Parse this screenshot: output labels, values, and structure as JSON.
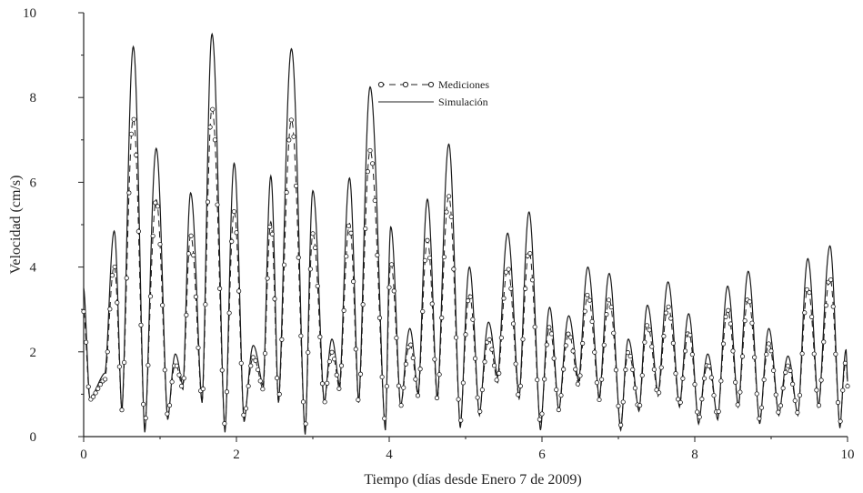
{
  "chart_data": {
    "type": "line",
    "title": "",
    "xlabel": "Tiempo (días desde Enero 7 de 2009)",
    "ylabel": "Velocidad (cm/s)",
    "xlim": [
      0,
      10
    ],
    "ylim": [
      0,
      10
    ],
    "x_ticks": [
      "0",
      "2",
      "4",
      "6",
      "8",
      "10"
    ],
    "y_ticks": [
      "0",
      "2",
      "4",
      "6",
      "8",
      "10"
    ],
    "grid": false,
    "legend_position": "top-center",
    "colors": {
      "line": "#1a1a1a",
      "marker_fill": "#ffffff"
    },
    "series": [
      {
        "name": "Simulación",
        "style": "solid",
        "peaks": [
          [
            0.4,
            4.85
          ],
          [
            0.65,
            9.2
          ],
          [
            0.95,
            6.8
          ],
          [
            1.2,
            1.95
          ],
          [
            1.4,
            5.75
          ],
          [
            1.68,
            9.5
          ],
          [
            1.97,
            6.45
          ],
          [
            2.22,
            2.15
          ],
          [
            2.45,
            6.15
          ],
          [
            2.72,
            9.15
          ],
          [
            3.0,
            5.8
          ],
          [
            3.25,
            2.3
          ],
          [
            3.48,
            6.1
          ],
          [
            3.75,
            8.25
          ],
          [
            4.02,
            4.95
          ],
          [
            4.27,
            2.55
          ],
          [
            4.5,
            5.6
          ],
          [
            4.78,
            6.9
          ],
          [
            5.05,
            4.0
          ],
          [
            5.3,
            2.7
          ],
          [
            5.55,
            4.8
          ],
          [
            5.83,
            5.3
          ],
          [
            6.1,
            3.05
          ],
          [
            6.35,
            2.85
          ],
          [
            6.6,
            4.0
          ],
          [
            6.88,
            3.85
          ],
          [
            7.13,
            2.3
          ],
          [
            7.38,
            3.1
          ],
          [
            7.65,
            3.65
          ],
          [
            7.92,
            2.9
          ],
          [
            8.17,
            1.95
          ],
          [
            8.43,
            3.55
          ],
          [
            8.7,
            3.9
          ],
          [
            8.97,
            2.55
          ],
          [
            9.22,
            1.9
          ],
          [
            9.48,
            4.2
          ],
          [
            9.77,
            4.5
          ],
          [
            9.98,
            2.05
          ]
        ],
        "troughs": [
          [
            0.0,
            3.5
          ],
          [
            0.08,
            0.9
          ],
          [
            0.28,
            1.5
          ],
          [
            0.5,
            0.6
          ],
          [
            0.8,
            0.1
          ],
          [
            1.1,
            0.4
          ],
          [
            1.3,
            1.2
          ],
          [
            1.55,
            0.8
          ],
          [
            1.85,
            0.1
          ],
          [
            2.1,
            0.35
          ],
          [
            2.35,
            1.2
          ],
          [
            2.55,
            0.8
          ],
          [
            2.9,
            0.05
          ],
          [
            3.15,
            0.8
          ],
          [
            3.35,
            1.2
          ],
          [
            3.6,
            0.8
          ],
          [
            3.95,
            0.15
          ],
          [
            4.15,
            0.7
          ],
          [
            4.38,
            1.0
          ],
          [
            4.63,
            0.9
          ],
          [
            4.93,
            0.2
          ],
          [
            5.18,
            0.5
          ],
          [
            5.42,
            1.4
          ],
          [
            5.7,
            0.9
          ],
          [
            5.98,
            0.15
          ],
          [
            6.22,
            0.6
          ],
          [
            6.48,
            1.3
          ],
          [
            6.75,
            0.9
          ],
          [
            7.03,
            0.15
          ],
          [
            7.27,
            0.6
          ],
          [
            7.52,
            1.0
          ],
          [
            7.8,
            0.7
          ],
          [
            8.05,
            0.3
          ],
          [
            8.3,
            0.4
          ],
          [
            8.57,
            0.7
          ],
          [
            8.85,
            0.3
          ],
          [
            9.1,
            0.5
          ],
          [
            9.35,
            0.5
          ],
          [
            9.62,
            0.7
          ],
          [
            9.9,
            0.2
          ],
          [
            10.0,
            1.3
          ]
        ]
      },
      {
        "name": "Mediciones",
        "style": "dashed-circles",
        "scale": 0.8
      }
    ],
    "legend": [
      {
        "label": "Mediciones",
        "style": "dashed-circles"
      },
      {
        "label": "Simulación",
        "style": "solid"
      }
    ]
  }
}
